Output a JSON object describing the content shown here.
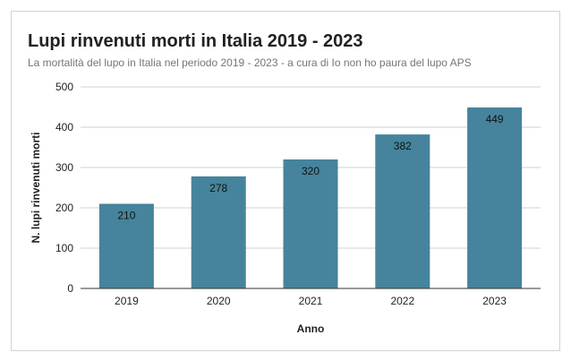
{
  "chart_data": {
    "type": "bar",
    "title": "Lupi rinvenuti morti in Italia 2019 - 2023",
    "subtitle": "La mortalità del lupo in Italia nel periodo 2019 - 2023 - a cura di Io non ho paura del lupo APS",
    "xlabel": "Anno",
    "ylabel": "N. lupi rinvenuti morti",
    "categories": [
      "2019",
      "2020",
      "2021",
      "2022",
      "2023"
    ],
    "values": [
      210,
      278,
      320,
      382,
      449
    ],
    "yticks": [
      0,
      100,
      200,
      300,
      400,
      500
    ],
    "ylim": [
      0,
      500
    ],
    "grid": true,
    "legend": "none",
    "bar_color": "#45849c"
  }
}
